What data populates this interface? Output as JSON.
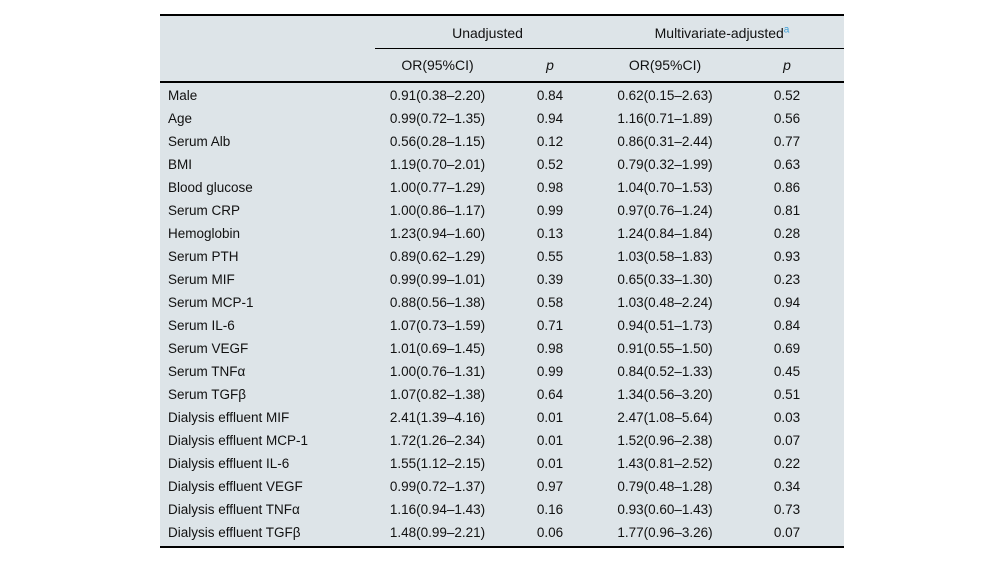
{
  "table": {
    "group_headers": [
      {
        "label": "Unadjusted",
        "superscript": ""
      },
      {
        "label": "Multivariate-adjusted",
        "superscript": "a"
      }
    ],
    "column_headers": {
      "unadjusted_or": "OR(95%CI)",
      "unadjusted_p": "p",
      "adjusted_or": "OR(95%CI)",
      "adjusted_p": "p"
    },
    "rows": [
      {
        "label": "Male",
        "un_or": "0.91(0.38–2.20)",
        "un_p": "0.84",
        "adj_or": "0.62(0.15–2.63)",
        "adj_p": "0.52"
      },
      {
        "label": "Age",
        "un_or": "0.99(0.72–1.35)",
        "un_p": "0.94",
        "adj_or": "1.16(0.71–1.89)",
        "adj_p": "0.56"
      },
      {
        "label": "Serum Alb",
        "un_or": "0.56(0.28–1.15)",
        "un_p": "0.12",
        "adj_or": "0.86(0.31–2.44)",
        "adj_p": "0.77"
      },
      {
        "label": "BMI",
        "un_or": "1.19(0.70–2.01)",
        "un_p": "0.52",
        "adj_or": "0.79(0.32–1.99)",
        "adj_p": "0.63"
      },
      {
        "label": "Blood glucose",
        "un_or": "1.00(0.77–1.29)",
        "un_p": "0.98",
        "adj_or": "1.04(0.70–1.53)",
        "adj_p": "0.86"
      },
      {
        "label": "Serum CRP",
        "un_or": "1.00(0.86–1.17)",
        "un_p": "0.99",
        "adj_or": "0.97(0.76–1.24)",
        "adj_p": "0.81"
      },
      {
        "label": "Hemoglobin",
        "un_or": "1.23(0.94–1.60)",
        "un_p": "0.13",
        "adj_or": "1.24(0.84–1.84)",
        "adj_p": "0.28"
      },
      {
        "label": "Serum PTH",
        "un_or": "0.89(0.62–1.29)",
        "un_p": "0.55",
        "adj_or": "1.03(0.58–1.83)",
        "adj_p": "0.93"
      },
      {
        "label": "Serum MIF",
        "un_or": "0.99(0.99–1.01)",
        "un_p": "0.39",
        "adj_or": "0.65(0.33–1.30)",
        "adj_p": "0.23"
      },
      {
        "label": "Serum MCP-1",
        "un_or": "0.88(0.56–1.38)",
        "un_p": "0.58",
        "adj_or": "1.03(0.48–2.24)",
        "adj_p": "0.94"
      },
      {
        "label": "Serum IL-6",
        "un_or": "1.07(0.73–1.59)",
        "un_p": "0.71",
        "adj_or": "0.94(0.51–1.73)",
        "adj_p": "0.84"
      },
      {
        "label": "Serum VEGF",
        "un_or": "1.01(0.69–1.45)",
        "un_p": "0.98",
        "adj_or": "0.91(0.55–1.50)",
        "adj_p": "0.69"
      },
      {
        "label": "Serum TNFα",
        "un_or": "1.00(0.76–1.31)",
        "un_p": "0.99",
        "adj_or": "0.84(0.52–1.33)",
        "adj_p": "0.45"
      },
      {
        "label": "Serum TGFβ",
        "un_or": "1.07(0.82–1.38)",
        "un_p": "0.64",
        "adj_or": "1.34(0.56–3.20)",
        "adj_p": "0.51"
      },
      {
        "label": "Dialysis effluent MIF",
        "un_or": "2.41(1.39–4.16)",
        "un_p": "0.01",
        "adj_or": "2.47(1.08–5.64)",
        "adj_p": "0.03"
      },
      {
        "label": "Dialysis effluent MCP-1",
        "un_or": "1.72(1.26–2.34)",
        "un_p": "0.01",
        "adj_or": "1.52(0.96–2.38)",
        "adj_p": "0.07"
      },
      {
        "label": "Dialysis effluent IL-6",
        "un_or": "1.55(1.12–2.15)",
        "un_p": "0.01",
        "adj_or": "1.43(0.81–2.52)",
        "adj_p": "0.22"
      },
      {
        "label": "Dialysis effluent VEGF",
        "un_or": "0.99(0.72–1.37)",
        "un_p": "0.97",
        "adj_or": "0.79(0.48–1.28)",
        "adj_p": "0.34"
      },
      {
        "label": "Dialysis effluent TNFα",
        "un_or": "1.16(0.94–1.43)",
        "un_p": "0.16",
        "adj_or": "0.93(0.60–1.43)",
        "adj_p": "0.73"
      },
      {
        "label": "Dialysis effluent TGFβ",
        "un_or": "1.48(0.99–2.21)",
        "un_p": "0.06",
        "adj_or": "1.77(0.96–3.26)",
        "adj_p": "0.07"
      }
    ],
    "colors": {
      "background": "#dde4e8",
      "rule": "#000000",
      "superscript": "#3fa0d8"
    }
  }
}
